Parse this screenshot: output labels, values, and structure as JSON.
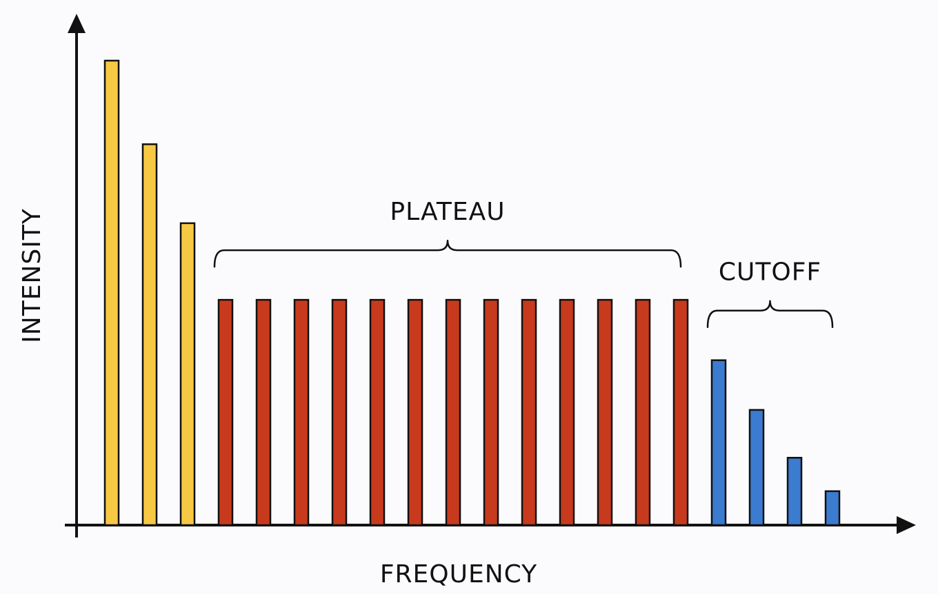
{
  "chart_data": {
    "type": "bar",
    "xlabel": "FREQUENCY",
    "ylabel": "INTENSITY",
    "ylim": [
      0,
      100
    ],
    "grid": false,
    "series": [
      {
        "name": "",
        "color": "#f7c843",
        "values": [
          100,
          82,
          65
        ]
      },
      {
        "name": "",
        "color": "#c83a1e",
        "values": [
          48.5,
          48.5,
          48.5,
          48.5,
          48.5,
          48.5,
          48.5,
          48.5,
          48.5,
          48.5,
          48.5,
          48.5,
          48.5
        ]
      },
      {
        "name": "",
        "color": "#3b7bd0",
        "values": [
          35.5,
          24.8,
          14.5,
          7.3
        ]
      }
    ],
    "annotations": [
      {
        "text": "PLATEAU",
        "spans_series": 1
      },
      {
        "text": "CUTOFF",
        "spans_series": 2
      }
    ]
  }
}
